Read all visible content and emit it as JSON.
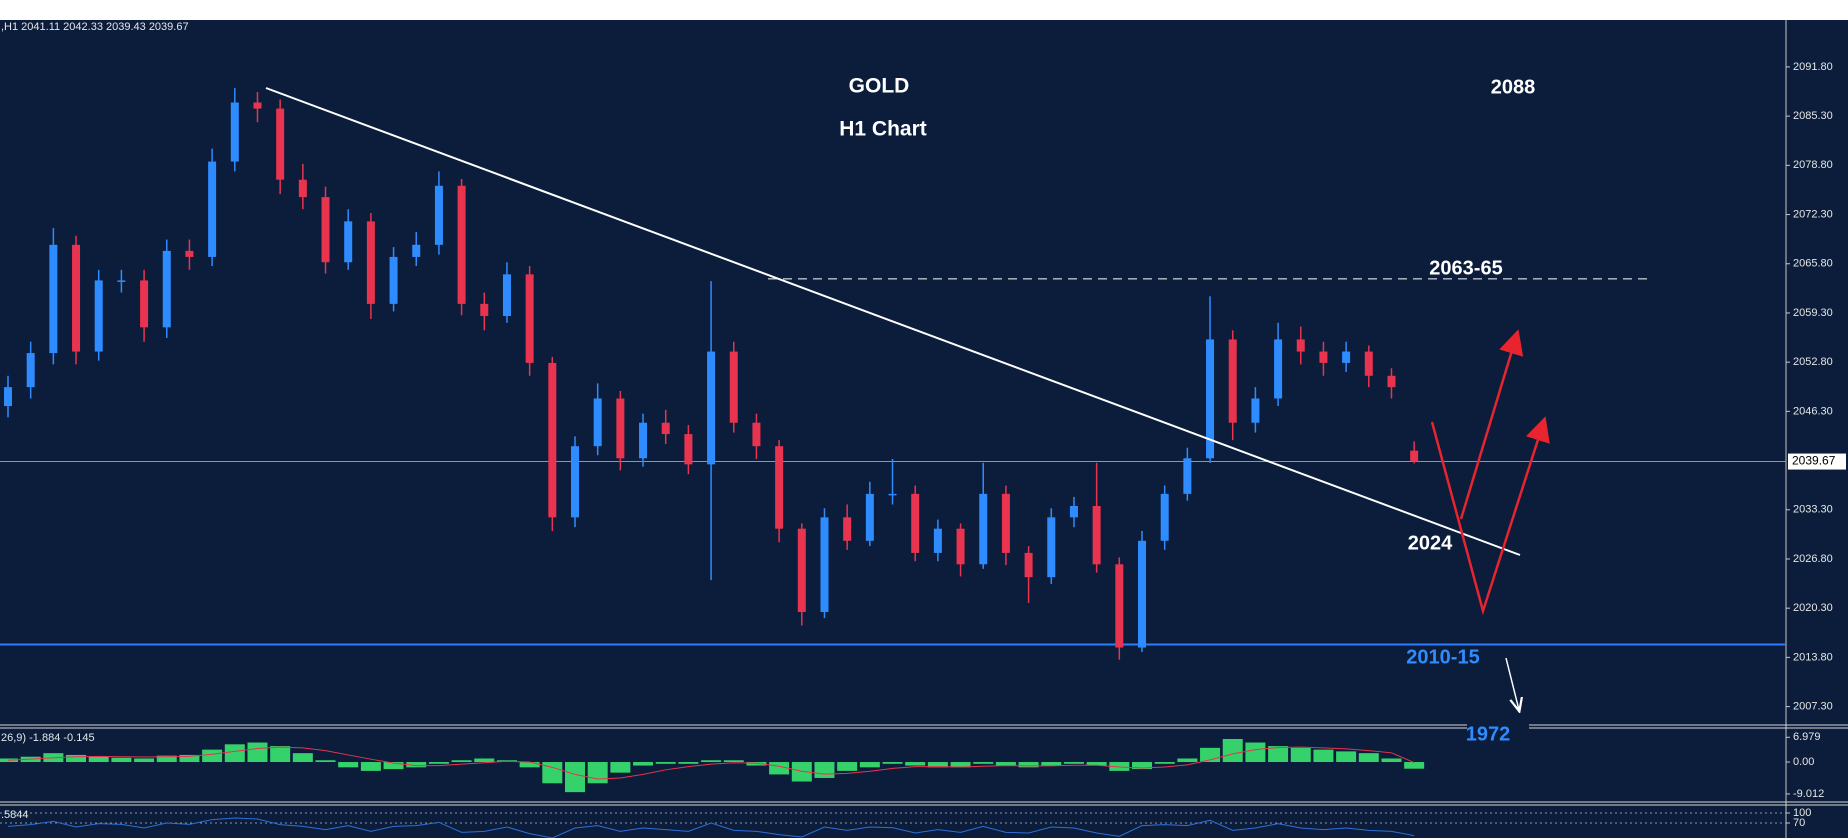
{
  "chart_data": [
    {
      "type": "candlestick",
      "header": ",H1  2041.11 2042.33 2039.43 2039.67",
      "title": "GOLD",
      "subtitle": "H1 Chart",
      "up_color": "#2f8cff",
      "down_color": "#e8344e",
      "ylim": [
        2005,
        2098
      ],
      "yticks": [
        {
          "value": 2091.8,
          "label": "2091.80"
        },
        {
          "value": 2085.3,
          "label": "2085.30"
        },
        {
          "value": 2078.8,
          "label": "2078.80"
        },
        {
          "value": 2072.3,
          "label": "2072.30"
        },
        {
          "value": 2065.8,
          "label": "2065.80"
        },
        {
          "value": 2059.3,
          "label": "2059.30"
        },
        {
          "value": 2052.8,
          "label": "2052.80"
        },
        {
          "value": 2046.3,
          "label": "2046.30"
        },
        {
          "value": 2033.3,
          "label": "2033.30"
        },
        {
          "value": 2026.8,
          "label": "2026.80"
        },
        {
          "value": 2020.3,
          "label": "2020.30"
        },
        {
          "value": 2013.8,
          "label": "2013.80"
        },
        {
          "value": 2007.3,
          "label": "2007.30"
        }
      ],
      "open": [
        2047,
        2049.5,
        2054,
        2068.3,
        2054.2,
        2063.6,
        2063.6,
        2057.4,
        2067.5,
        2066.7,
        2079.3,
        2087.1,
        2086.3,
        2076.9,
        2074.6,
        2066,
        2071.4,
        2060.5,
        2066.7,
        2068.3,
        2076.1,
        2060.5,
        2058.9,
        2064.4,
        2052.7,
        2032.3,
        2041.7,
        2048,
        2040.1,
        2044.8,
        2043.3,
        2039.3,
        2054.2,
        2044.8,
        2041.7,
        2030.8,
        2019.8,
        2032.3,
        2029.2,
        2035.4,
        2035.4,
        2027.6,
        2030.8,
        2026.1,
        2035.4,
        2027.6,
        2024.4,
        2032.3,
        2033.8,
        2026.1,
        2015.1,
        2029.2,
        2035.4,
        2040.1,
        2055.8,
        2044.8,
        2048,
        2055.8,
        2054.2,
        2052.7,
        2054.2,
        2051,
        2041.11
      ],
      "high": [
        2051,
        2055.5,
        2070.5,
        2069.5,
        2065,
        2065,
        2065,
        2069,
        2069,
        2081,
        2089,
        2088.5,
        2087.5,
        2079,
        2076,
        2073,
        2072.5,
        2068,
        2070,
        2078,
        2077,
        2062,
        2066,
        2065.5,
        2053.5,
        2043,
        2050,
        2049,
        2046,
        2046.5,
        2044.5,
        2063.5,
        2055.5,
        2046,
        2042.5,
        2031.5,
        2033.5,
        2034,
        2037,
        2040,
        2036.5,
        2032,
        2031.5,
        2039.5,
        2036.5,
        2028.5,
        2033.5,
        2035,
        2039.5,
        2027,
        2030.5,
        2036.5,
        2041.5,
        2061.5,
        2057,
        2049.5,
        2058,
        2057.5,
        2055.5,
        2055.5,
        2055,
        2052,
        2042.33
      ],
      "low": [
        2045.5,
        2048,
        2052.5,
        2052.5,
        2053,
        2062,
        2055.5,
        2056,
        2065,
        2065.5,
        2078,
        2084.5,
        2075,
        2073,
        2064.5,
        2065,
        2058.5,
        2059.5,
        2065.5,
        2067,
        2059,
        2057,
        2058,
        2051,
        2030.5,
        2031,
        2040.5,
        2038.5,
        2039,
        2042,
        2038,
        2024,
        2043.5,
        2040,
        2029,
        2018,
        2019,
        2028,
        2028.5,
        2034,
        2026.5,
        2026.5,
        2024.5,
        2025.5,
        2026,
        2021,
        2023.5,
        2031,
        2025,
        2013.5,
        2014.5,
        2028,
        2034.5,
        2039.5,
        2042.5,
        2043.5,
        2047,
        2052.5,
        2051,
        2051.5,
        2049.5,
        2048,
        2039.43
      ],
      "close": [
        2049.5,
        2054,
        2068.3,
        2054.2,
        2063.6,
        2063.6,
        2057.4,
        2067.5,
        2066.7,
        2079.3,
        2087.1,
        2086.3,
        2076.9,
        2074.6,
        2066,
        2071.4,
        2060.5,
        2066.7,
        2068.3,
        2076.1,
        2060.5,
        2058.9,
        2064.4,
        2052.7,
        2032.3,
        2041.7,
        2048,
        2040.1,
        2044.8,
        2043.3,
        2039.3,
        2054.2,
        2044.8,
        2041.7,
        2030.8,
        2019.8,
        2032.3,
        2029.2,
        2035.4,
        2035.4,
        2027.6,
        2030.8,
        2026.1,
        2035.4,
        2027.6,
        2024.4,
        2032.3,
        2033.8,
        2026.1,
        2015.1,
        2029.2,
        2035.4,
        2040.1,
        2055.8,
        2044.8,
        2048,
        2055.8,
        2054.2,
        2052.7,
        2054.2,
        2051,
        2049.5,
        2039.67
      ],
      "levels": [
        {
          "value": 2063.8,
          "color": "#ffffff",
          "dashed": true
        },
        {
          "value": 2015.5,
          "color": "#2f7dff",
          "dashed": false
        }
      ],
      "annotations": [
        {
          "text": "2088",
          "color": "#ffffff"
        },
        {
          "text": "2063-65",
          "color": "#ffffff"
        },
        {
          "text": "2024",
          "color": "#ffffff"
        },
        {
          "text": "2010-15",
          "color": "#2f8cff"
        },
        {
          "text": "1972",
          "color": "#2f8cff"
        }
      ]
    },
    {
      "type": "bar",
      "label": "26,9) -1.884 -0.145",
      "color": "#35d16a",
      "signal_color": "#e8344e",
      "ylim": [
        -11,
        9.6
      ],
      "yticks": [
        6.979,
        {
          "value": 0,
          "label": "0.00"
        },
        -9.012
      ],
      "values": [
        1,
        1.5,
        2.5,
        2,
        1.5,
        1.2,
        1,
        1.8,
        2,
        3.5,
        5,
        5.5,
        4.5,
        2.5,
        0.5,
        -1.5,
        -2.5,
        -2,
        -1.5,
        -0.5,
        0.5,
        1,
        0.5,
        -1.5,
        -6,
        -8.5,
        -6,
        -3,
        -1,
        -0.5,
        -0.5,
        0.5,
        0.5,
        -1,
        -3.5,
        -5.5,
        -4.5,
        -2.5,
        -1.5,
        -0.5,
        -1,
        -1.5,
        -1.5,
        -0.5,
        -1,
        -1.5,
        -1,
        -0.5,
        -1,
        -2.5,
        -2,
        -0.5,
        1,
        4,
        6.5,
        5.5,
        4.5,
        4,
        3.5,
        3,
        2.5,
        1,
        -1.884
      ],
      "signal": [
        0.5,
        0.8,
        1.2,
        1.5,
        1.6,
        1.5,
        1.4,
        1.5,
        1.6,
        2.2,
        3,
        3.8,
        4.2,
        4,
        3.2,
        2,
        0.8,
        -0.3,
        -1,
        -1,
        -0.6,
        -0.2,
        0.2,
        0,
        -1.5,
        -3.5,
        -4.8,
        -4.5,
        -3.5,
        -2.2,
        -1.3,
        -0.6,
        -0.2,
        -0.3,
        -1.2,
        -2.6,
        -3.4,
        -3.2,
        -2.6,
        -1.8,
        -1.3,
        -1.3,
        -1.4,
        -1.2,
        -1,
        -1.1,
        -1.1,
        -0.9,
        -0.9,
        -1.4,
        -1.7,
        -1.4,
        -0.8,
        0.6,
        2.3,
        3.5,
        4.1,
        4.2,
        4,
        3.7,
        3.2,
        2.6,
        -0.145
      ]
    },
    {
      "type": "line",
      "label": ".5844",
      "color": "#2f6fd6",
      "ylim": [
        25,
        124
      ],
      "yticks": [
        100,
        70
      ],
      "values": [
        60,
        65,
        75,
        58,
        68,
        66,
        55,
        70,
        66,
        80,
        85,
        82,
        65,
        60,
        50,
        62,
        45,
        60,
        62,
        72,
        42,
        45,
        58,
        38,
        25,
        55,
        62,
        45,
        55,
        50,
        45,
        70,
        48,
        45,
        35,
        28,
        58,
        48,
        58,
        56,
        40,
        50,
        42,
        60,
        42,
        40,
        58,
        55,
        40,
        30,
        62,
        65,
        62,
        78,
        48,
        55,
        68,
        55,
        50,
        55,
        48,
        45,
        32
      ]
    }
  ]
}
